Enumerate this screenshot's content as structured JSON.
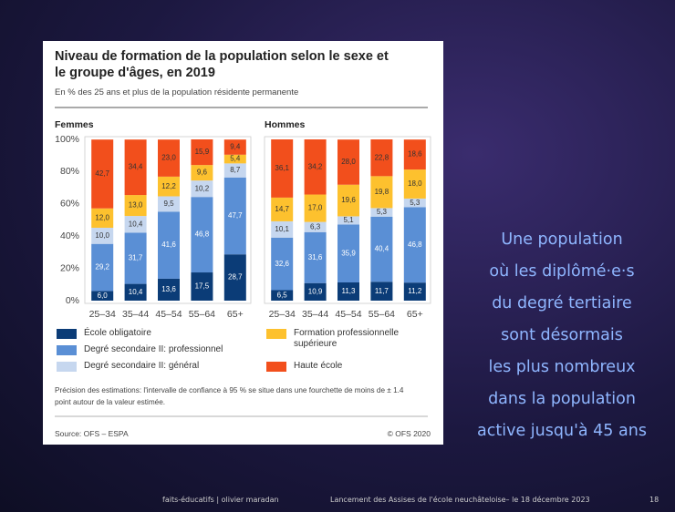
{
  "slide": {
    "text_lines": [
      "Une population",
      "où les diplômé·e·s",
      "du degré tertiaire",
      "sont désormais",
      "les plus nombreux",
      "dans la population",
      "active jusqu'à 45 ans"
    ],
    "footer": {
      "left": "faits-éducatifs | olivier maradan",
      "center": "Lancement des Assises de l'école neuchâteloise– le 18 décembre 2023",
      "page": 18
    }
  },
  "figure": {
    "title": "Niveau de formation de la population selon le sexe et le groupe d'âges, en 2019",
    "subtitle": "En % des 25 ans et plus de la population résidente permanente",
    "note": "Précision des estimations: l'intervalle de confiance à 95 % se situe dans une fourchette de moins de ± 1.4 point autour de la valeur estimée.",
    "source": "Source: OFS – ESPA",
    "copyright": "© OFS 2020"
  },
  "chart_data": [
    {
      "type": "bar",
      "stacked": true,
      "title": "Femmes",
      "categories": [
        "25–34",
        "35–44",
        "45–54",
        "55–64",
        "65+"
      ],
      "ylim": [
        0,
        100
      ],
      "yticks": [
        {
          "value": 0,
          "label": "0%"
        },
        {
          "value": 20,
          "label": "20%"
        },
        {
          "value": 40,
          "label": "40%"
        },
        {
          "value": 60,
          "label": "60%"
        },
        {
          "value": 80,
          "label": "80%"
        },
        {
          "value": 100,
          "label": "100%"
        }
      ],
      "series": [
        {
          "name": "École obligatoire",
          "color": "#0b3c77",
          "values": [
            6.0,
            10.4,
            13.6,
            17.5,
            28.7
          ],
          "value_labels": [
            "6,0",
            "10,4",
            "13,6",
            "17,5",
            "28,7"
          ]
        },
        {
          "name": "Degré secondaire II: professionnel",
          "color": "#5a8fd5",
          "values": [
            29.2,
            31.7,
            41.6,
            46.8,
            47.7
          ],
          "value_labels": [
            "29,2",
            "31,7",
            "41,6",
            "46,8",
            "47,7"
          ]
        },
        {
          "name": "Degré secondaire II: général",
          "color": "#c6d7ef",
          "values": [
            10.0,
            10.4,
            9.5,
            10.2,
            8.7
          ],
          "value_labels": [
            "10,0",
            "10,4",
            "9,5",
            "10,2",
            "8,7"
          ]
        },
        {
          "name": "Formation professionnelle supérieure",
          "color": "#fdc12e",
          "values": [
            12.0,
            13.0,
            12.2,
            9.6,
            5.4
          ],
          "value_labels": [
            "12,0",
            "13,0",
            "12,2",
            "9,6",
            "5,4"
          ]
        },
        {
          "name": "Haute école",
          "color": "#f24f1c",
          "values": [
            42.7,
            34.4,
            23.0,
            15.9,
            9.4
          ],
          "value_labels": [
            "42,7",
            "34,4",
            "23,0",
            "15,9",
            "9,4"
          ]
        }
      ]
    },
    {
      "type": "bar",
      "stacked": true,
      "title": "Hommes",
      "categories": [
        "25–34",
        "35–44",
        "45–54",
        "55–64",
        "65+"
      ],
      "ylim": [
        0,
        100
      ],
      "series": [
        {
          "name": "École obligatoire",
          "color": "#0b3c77",
          "values": [
            6.5,
            10.9,
            11.3,
            11.7,
            11.2
          ],
          "value_labels": [
            "6,5",
            "10,9",
            "11,3",
            "11,7",
            "11,2"
          ]
        },
        {
          "name": "Degré secondaire II: professionnel",
          "color": "#5a8fd5",
          "values": [
            32.6,
            31.6,
            35.9,
            40.4,
            46.8
          ],
          "value_labels": [
            "32,6",
            "31,6",
            "35,9",
            "40,4",
            "46,8"
          ]
        },
        {
          "name": "Degré secondaire II: général",
          "color": "#c6d7ef",
          "values": [
            10.1,
            6.3,
            5.1,
            5.3,
            5.3
          ],
          "value_labels": [
            "10,1",
            "6,3",
            "5,1",
            "5,3",
            "5,3"
          ]
        },
        {
          "name": "Formation professionnelle supérieure",
          "color": "#fdc12e",
          "values": [
            14.7,
            17.0,
            19.6,
            19.8,
            18.0
          ],
          "value_labels": [
            "14,7",
            "17,0",
            "19,6",
            "19,8",
            "18,0"
          ]
        },
        {
          "name": "Haute école",
          "color": "#f24f1c",
          "values": [
            36.1,
            34.2,
            28.0,
            22.8,
            18.6
          ],
          "value_labels": [
            "36,1",
            "34,2",
            "28,0",
            "22,8",
            "18,6"
          ]
        }
      ]
    }
  ]
}
